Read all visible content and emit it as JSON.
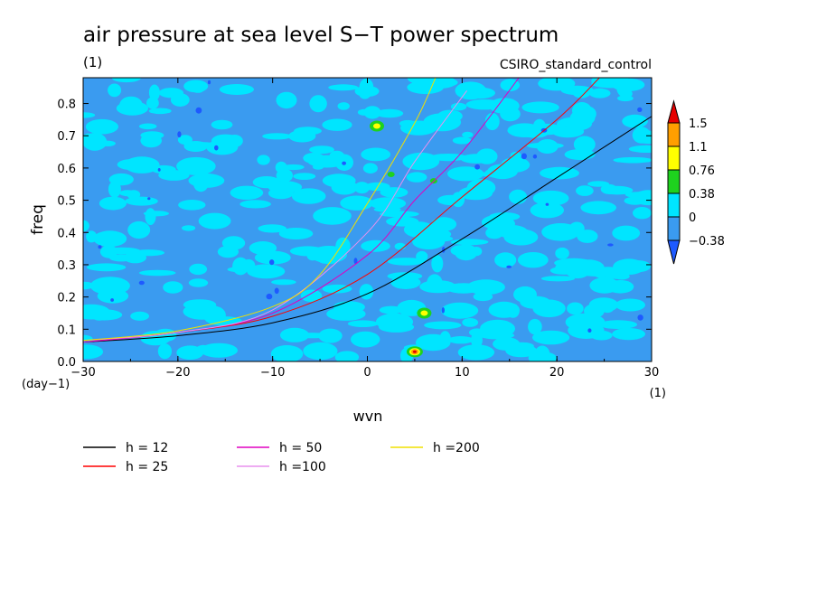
{
  "chart_data": {
    "type": "heatmap",
    "title": "air pressure at sea level S−T power spectrum",
    "subtitle": "(1)",
    "source_label": "CSIRO_standard_control",
    "xlabel": "wvn",
    "ylabel": "freq",
    "x_unit": "(1)",
    "y_unit": "(day−1)",
    "xlim": [
      -30,
      30
    ],
    "ylim": [
      0,
      0.88
    ],
    "x_ticks": [
      -30,
      -20,
      -10,
      0,
      10,
      20,
      30
    ],
    "y_ticks": [
      0.0,
      0.1,
      0.2,
      0.3,
      0.4,
      0.5,
      0.6,
      0.7,
      0.8
    ],
    "grid": false,
    "colorbar": {
      "levels": [
        "−0.38",
        "0",
        "0.38",
        "0.76",
        "1.1",
        "1.5"
      ],
      "colors": [
        "#1e5aff",
        "#3a9bf0",
        "#00e5ff",
        "#1ed21e",
        "#ffff00",
        "#ff9f00",
        "#e60000"
      ]
    },
    "background_field": {
      "dominant_level": "0 to 0.38",
      "peaks": [
        {
          "x": 5,
          "y": 0.03,
          "level": "1.1 to 1.5"
        },
        {
          "x": 6,
          "y": 0.15,
          "level": "0.76 to 1.1"
        },
        {
          "x": 1,
          "y": 0.73,
          "level": "0.76 to 1.1"
        },
        {
          "x": 2.5,
          "y": 0.58,
          "level": "0.38 to 0.76"
        },
        {
          "x": 7,
          "y": 0.56,
          "level": "0.38 to 0.76"
        }
      ]
    },
    "series": [
      {
        "name": "h = 12",
        "equivalent_depth": 12,
        "color": "#000000",
        "x": [
          -30,
          -20,
          -10,
          0,
          10,
          20,
          30
        ],
        "y": [
          0.06,
          0.08,
          0.12,
          0.21,
          0.38,
          0.57,
          0.76
        ]
      },
      {
        "name": "h = 25",
        "equivalent_depth": 25,
        "color": "#ff0000",
        "x": [
          -30,
          -20,
          -10,
          0,
          10,
          20,
          24.5
        ],
        "y": [
          0.06,
          0.09,
          0.14,
          0.27,
          0.51,
          0.75,
          0.88
        ]
      },
      {
        "name": "h = 50",
        "equivalent_depth": 50,
        "color": "#e000c0",
        "x": [
          -30,
          -20,
          -10,
          0,
          5,
          10,
          16
        ],
        "y": [
          0.06,
          0.09,
          0.15,
          0.33,
          0.5,
          0.65,
          0.88
        ]
      },
      {
        "name": "h =100",
        "equivalent_depth": 100,
        "color": "#e890ee",
        "x": [
          -30,
          -20,
          -10,
          0,
          5,
          10.5
        ],
        "y": [
          0.065,
          0.09,
          0.16,
          0.4,
          0.62,
          0.84
        ]
      },
      {
        "name": "h =200",
        "equivalent_depth": 200,
        "color": "#f0e000",
        "x": [
          -30,
          -20,
          -10,
          -5,
          0,
          5,
          7.2
        ],
        "y": [
          0.065,
          0.095,
          0.17,
          0.27,
          0.49,
          0.74,
          0.88
        ]
      }
    ]
  }
}
